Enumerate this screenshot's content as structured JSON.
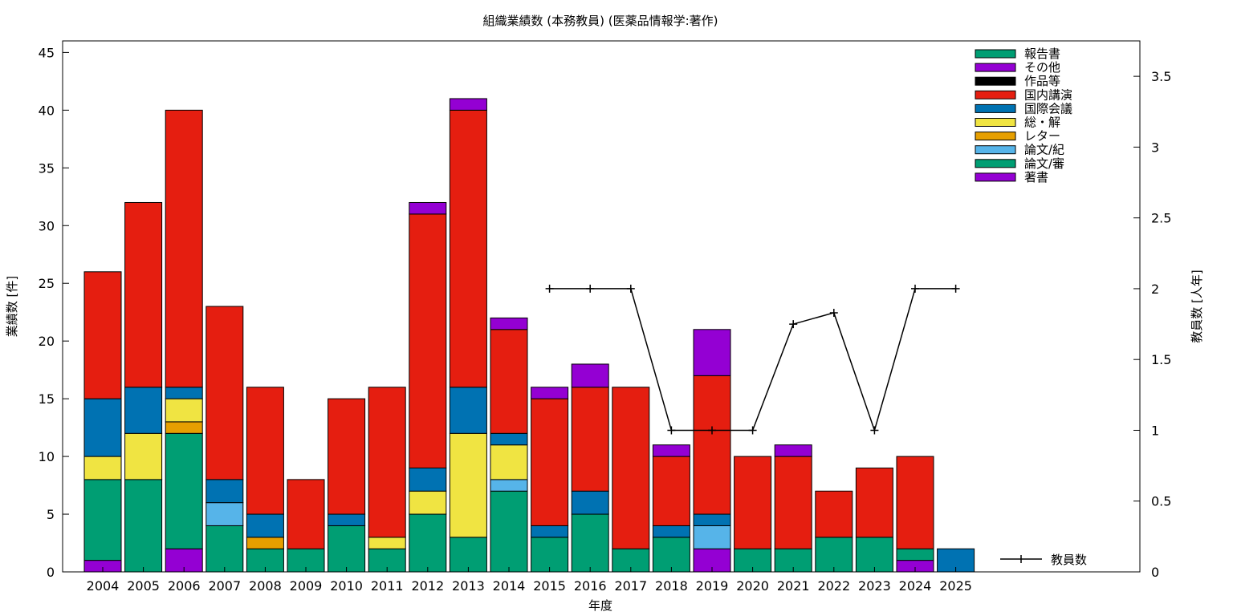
{
  "chart_data": {
    "type": "bar",
    "stacked": true,
    "title": "組織業績数 (本務教員) (医薬品情報学:著作)",
    "xlabel": "年度",
    "ylabel": "業績数 [件]",
    "y2label": "教員数 [人年]",
    "ylim": [
      0,
      46
    ],
    "y2lim": [
      0,
      3.75
    ],
    "yticks": [
      0,
      5,
      10,
      15,
      20,
      25,
      30,
      35,
      40,
      45
    ],
    "y2ticks": [
      "0",
      "0.5",
      "1",
      "1.5",
      "2",
      "2.5",
      "3",
      "3.5"
    ],
    "y2tick_values": [
      0,
      0.5,
      1,
      1.5,
      2,
      2.5,
      3,
      3.5
    ],
    "grid": false,
    "legend_position": "top-right",
    "categories": [
      "2004",
      "2005",
      "2006",
      "2007",
      "2008",
      "2009",
      "2010",
      "2011",
      "2012",
      "2013",
      "2014",
      "2015",
      "2016",
      "2017",
      "2018",
      "2019",
      "2020",
      "2021",
      "2022",
      "2023",
      "2024",
      "2025"
    ],
    "series": [
      {
        "name": "著書",
        "color": "#9400d3",
        "values": [
          1,
          0,
          2,
          0,
          0,
          0,
          0,
          0,
          0,
          0,
          0,
          0,
          0,
          0,
          0,
          2,
          0,
          0,
          0,
          0,
          1,
          0
        ]
      },
      {
        "name": "論文/審",
        "color": "#009e73",
        "values": [
          7,
          8,
          10,
          4,
          2,
          2,
          4,
          2,
          5,
          3,
          7,
          3,
          5,
          2,
          3,
          0,
          2,
          2,
          3,
          3,
          1,
          0
        ]
      },
      {
        "name": "論文/紀",
        "color": "#56b4e9",
        "values": [
          0,
          0,
          0,
          2,
          0,
          0,
          0,
          0,
          0,
          0,
          1,
          0,
          0,
          0,
          0,
          2,
          0,
          0,
          0,
          0,
          0,
          0
        ]
      },
      {
        "name": "レター",
        "color": "#e69f00",
        "values": [
          0,
          0,
          1,
          0,
          1,
          0,
          0,
          0,
          0,
          0,
          0,
          0,
          0,
          0,
          0,
          0,
          0,
          0,
          0,
          0,
          0,
          0
        ]
      },
      {
        "name": "総・解",
        "color": "#f0e442",
        "values": [
          2,
          4,
          2,
          0,
          0,
          0,
          0,
          1,
          2,
          9,
          3,
          0,
          0,
          0,
          0,
          0,
          0,
          0,
          0,
          0,
          0,
          0
        ]
      },
      {
        "name": "国際会議",
        "color": "#0072b2",
        "values": [
          5,
          4,
          1,
          2,
          2,
          0,
          1,
          0,
          2,
          4,
          1,
          1,
          2,
          0,
          1,
          1,
          0,
          0,
          0,
          0,
          0,
          2
        ]
      },
      {
        "name": "国内講演",
        "color": "#e51e10",
        "values": [
          11,
          16,
          24,
          15,
          11,
          6,
          10,
          13,
          22,
          24,
          9,
          11,
          9,
          14,
          6,
          12,
          8,
          8,
          4,
          6,
          8,
          0
        ]
      },
      {
        "name": "作品等",
        "color": "#000000",
        "values": [
          0,
          0,
          0,
          0,
          0,
          0,
          0,
          0,
          0,
          0,
          0,
          0,
          0,
          0,
          0,
          0,
          0,
          0,
          0,
          0,
          0,
          0
        ]
      },
      {
        "name": "その他",
        "color": "#9400d3",
        "values": [
          0,
          0,
          0,
          0,
          0,
          0,
          0,
          0,
          1,
          1,
          1,
          1,
          2,
          0,
          1,
          4,
          0,
          1,
          0,
          0,
          0,
          0
        ]
      },
      {
        "name": "報告書",
        "color": "#009e73",
        "values": [
          0,
          0,
          0,
          0,
          0,
          0,
          0,
          0,
          0,
          0,
          0,
          0,
          0,
          0,
          0,
          0,
          0,
          0,
          0,
          0,
          0,
          0
        ]
      }
    ],
    "legend_order": [
      "報告書",
      "その他",
      "作品等",
      "国内講演",
      "国際会議",
      "総・解",
      "レター",
      "論文/紀",
      "論文/審",
      "著書"
    ],
    "line_series": {
      "name": "教員数",
      "axis": "y2",
      "color": "#000000",
      "points": [
        {
          "x": "2015",
          "y": 2
        },
        {
          "x": "2016",
          "y": 2
        },
        {
          "x": "2017",
          "y": 2
        },
        {
          "x": "2018",
          "y": 1
        },
        {
          "x": "2019",
          "y": 1
        },
        {
          "x": "2020",
          "y": 1
        },
        {
          "x": "2021",
          "y": 1.75
        },
        {
          "x": "2022",
          "y": 1.83
        },
        {
          "x": "2023",
          "y": 1
        },
        {
          "x": "2024",
          "y": 2
        },
        {
          "x": "2025",
          "y": 2
        }
      ]
    }
  }
}
